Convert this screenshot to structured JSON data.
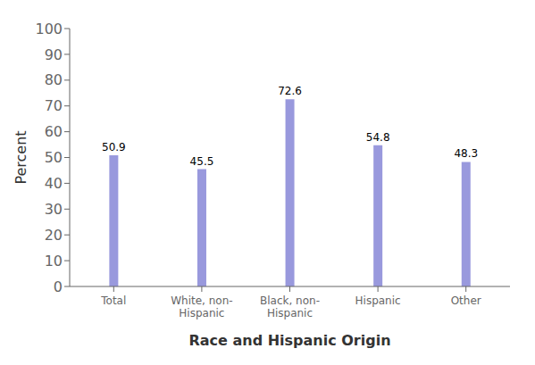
{
  "chart_data": {
    "type": "bar",
    "xlabel": "Race and Hispanic Origin",
    "ylabel": "Percent",
    "categories": [
      "Total",
      "White, non-\nHispanic",
      "Black, non-\nHispanic",
      "Hispanic",
      "Other"
    ],
    "values": [
      50.9,
      45.5,
      72.6,
      54.8,
      48.3
    ],
    "color": "#9999dd",
    "ylim": [
      0,
      100
    ],
    "yticks": [
      0,
      10,
      20,
      30,
      40,
      50,
      60,
      70,
      80,
      90,
      100
    ],
    "grid": false,
    "data_labels": true
  }
}
